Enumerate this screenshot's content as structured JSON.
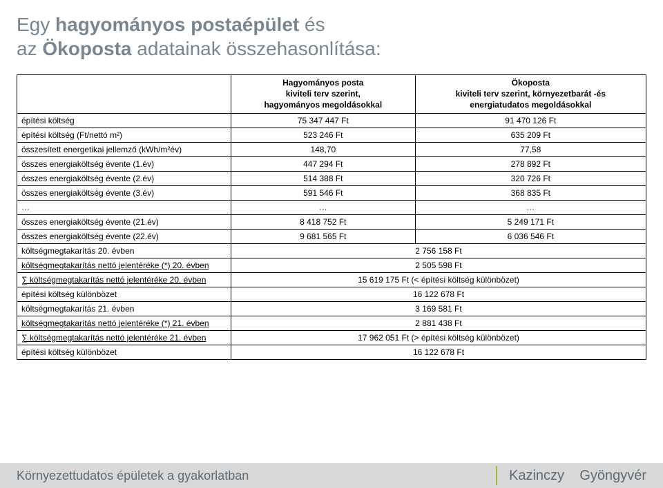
{
  "title": {
    "line1_part1": "Egy ",
    "line1_bold": "hagyományos postaépület",
    "line1_part2": " és",
    "line2_part1": "az ",
    "line2_bold": "Ökoposta",
    "line2_part2": " adatainak összehasonlítása:"
  },
  "table": {
    "headers": {
      "blank": "",
      "col1": "Hagyományos posta\nkiviteli terv szerint,\nhagyományos megoldásokkal",
      "col2": "Ökoposta\nkiviteli terv szerint, környezetbarát -és\nenergiatudatos megoldásokkal"
    },
    "rows3": [
      {
        "label": "építési költség",
        "c1": "75 347 447 Ft",
        "c2": "91 470 126 Ft"
      },
      {
        "label": "építési költség (Ft/nettó m²)",
        "c1": "523 246 Ft",
        "c2": "635 209 Ft"
      },
      {
        "label": "összesített energetikai jellemző (kWh/m²év)",
        "c1": "148,70",
        "c2": "77,58"
      },
      {
        "label": "összes energiaköltség évente (1.év)",
        "c1": "447 294 Ft",
        "c2": "278 892 Ft"
      },
      {
        "label": "összes energiaköltség évente (2.év)",
        "c1": "514 388 Ft",
        "c2": "320 726 Ft"
      },
      {
        "label": "összes energiaköltség évente (3.év)",
        "c1": "591 546 Ft",
        "c2": "368 835 Ft"
      },
      {
        "label": "…",
        "c1": "…",
        "c2": "…"
      },
      {
        "label": "összes energiaköltség évente (21.év)",
        "c1": "8 418 752 Ft",
        "c2": "5 249 171 Ft"
      },
      {
        "label": "összes energiaköltség évente (22.év)",
        "c1": "9 681 565 Ft",
        "c2": "6 036 546 Ft"
      }
    ],
    "rows2": [
      {
        "label": "költségmegtakarítás 20. évben",
        "val": "2 756 158 Ft",
        "u": false
      },
      {
        "label": "költségmegtakarítás nettó jelentéréke (*) 20. évben",
        "val": "2 505 598 Ft",
        "u": true
      },
      {
        "label": "∑ költségmegtakarítás nettó jelentéréke 20. évben",
        "val": "15 619 175 Ft (< építési költség különbözet)",
        "u": true
      },
      {
        "label": "építési költség különbözet",
        "val": "16 122 678 Ft",
        "u": false
      },
      {
        "label": "költségmegtakarítás 21. évben",
        "val": "3 169 581 Ft",
        "u": false
      },
      {
        "label": "költségmegtakarítás nettó jelentéréke (*) 21. évben",
        "val": "2 881 438 Ft",
        "u": true
      },
      {
        "label": "∑ költségmegtakarítás nettó jelentéréke 21. évben",
        "val": "17 962 051 Ft (> építési költség különbözet)",
        "u": true
      },
      {
        "label": "építési költség különbözet",
        "val": "16 122 678 Ft",
        "u": false
      }
    ]
  },
  "footer": {
    "left": "Környezettudatos épületek a gyakorlatban",
    "rightLast": "Kazinczy",
    "rightFirst": "Gyöngyvér"
  },
  "colors": {
    "text_gray": "#7a868f",
    "footer_bg": "#d9d9d9",
    "accent": "#a7b92f",
    "border": "#000000",
    "bg": "#ffffff"
  },
  "typography": {
    "title_fontsize": 28,
    "table_fontsize": 12,
    "footer_left_fontsize": 18,
    "footer_right_fontsize": 20
  }
}
